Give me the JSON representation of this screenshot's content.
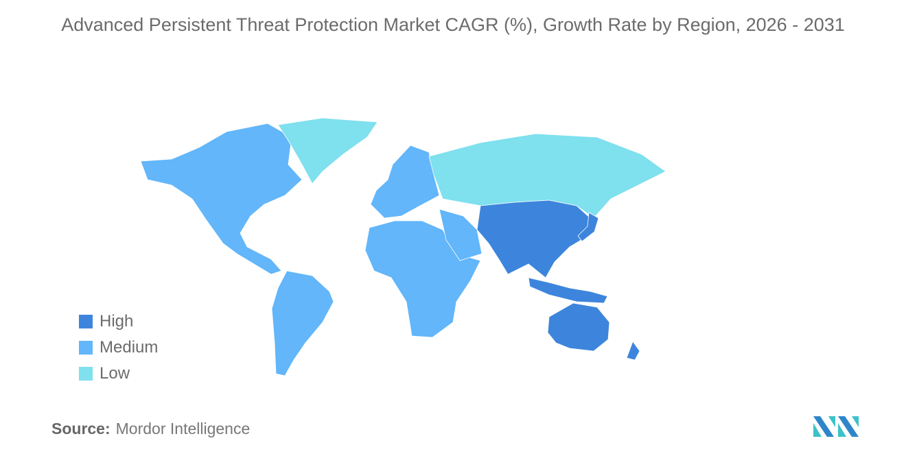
{
  "title": "Advanced Persistent Threat Protection Market CAGR (%), Growth Rate by Region, 2026 - 2031",
  "colors": {
    "High": "#3d85dc",
    "Medium": "#62b6f9",
    "Low": "#7fe0ee",
    "No data": "#aaaaaa"
  },
  "legend": [
    {
      "label": "High",
      "color": "#3d85dc"
    },
    {
      "label": "Medium",
      "color": "#62b6f9"
    },
    {
      "label": "Low",
      "color": "#7fe0ee"
    }
  ],
  "chart_data": {
    "type": "choropleth",
    "categories": [
      "High",
      "Medium",
      "Low"
    ],
    "regions": [
      {
        "name": "North America",
        "level": "Medium"
      },
      {
        "name": "Greenland",
        "level": "Low"
      },
      {
        "name": "South America",
        "level": "Medium"
      },
      {
        "name": "Europe",
        "level": "Medium"
      },
      {
        "name": "Africa",
        "level": "Medium"
      },
      {
        "name": "Middle East",
        "level": "Medium"
      },
      {
        "name": "Russia",
        "level": "Low"
      },
      {
        "name": "Asia",
        "level": "High"
      },
      {
        "name": "Japan",
        "level": "High"
      },
      {
        "name": "Southeast Asia",
        "level": "High"
      },
      {
        "name": "Australia",
        "level": "High"
      },
      {
        "name": "New Zealand",
        "level": "High"
      }
    ],
    "legend_position": "bottom-left"
  },
  "source": {
    "label": "Source:",
    "value": "Mordor Intelligence"
  }
}
